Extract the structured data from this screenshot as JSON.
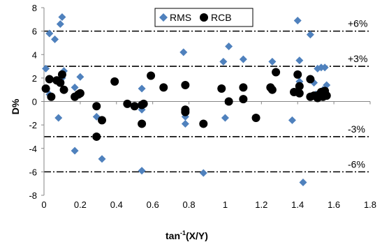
{
  "chart_data": {
    "type": "scatter",
    "xlabel_base": "tan",
    "xlabel_sup": "-1",
    "xlabel_rest": "(X/Y)",
    "ylabel": "D%",
    "xlim": [
      0,
      1.8
    ],
    "ylim": [
      -8,
      8
    ],
    "x_ticks": [
      "0",
      "0.2",
      "0.4",
      "0.6",
      "0.8",
      "1",
      "1.2",
      "1.4",
      "1.6",
      "1.8"
    ],
    "y_ticks": [
      "8",
      "6",
      "4",
      "2",
      "0",
      "-2",
      "-4",
      "-6",
      "-8"
    ],
    "grid": false,
    "legend_position": "top-center",
    "reference_lines": [
      {
        "y": 6,
        "label": "+6%"
      },
      {
        "y": 3,
        "label": "+3%"
      },
      {
        "y": -3,
        "label": "-3%"
      },
      {
        "y": -6,
        "label": "-6%"
      }
    ],
    "series": [
      {
        "name": "RMS",
        "marker": "diamond",
        "color": "#4F81BD",
        "points": [
          [
            0.01,
            2.8
          ],
          [
            0.03,
            5.8
          ],
          [
            0.06,
            5.3
          ],
          [
            0.09,
            6.6
          ],
          [
            0.1,
            7.2
          ],
          [
            0.03,
            0.6
          ],
          [
            0.08,
            -1.4
          ],
          [
            0.1,
            2.0
          ],
          [
            0.11,
            2.6
          ],
          [
            0.17,
            -4.2
          ],
          [
            0.17,
            1.2
          ],
          [
            0.2,
            2.1
          ],
          [
            0.29,
            -1.3
          ],
          [
            0.32,
            -4.9
          ],
          [
            0.54,
            1.1
          ],
          [
            0.54,
            -0.7
          ],
          [
            0.54,
            -5.9
          ],
          [
            0.77,
            4.2
          ],
          [
            0.78,
            -1.3
          ],
          [
            0.78,
            -1.9
          ],
          [
            0.88,
            -6.1
          ],
          [
            0.99,
            3.4
          ],
          [
            1.0,
            -1.4
          ],
          [
            1.02,
            4.7
          ],
          [
            1.1,
            3.6
          ],
          [
            1.26,
            3.4
          ],
          [
            1.37,
            -1.6
          ],
          [
            1.4,
            6.9
          ],
          [
            1.41,
            3.5
          ],
          [
            1.41,
            1.7
          ],
          [
            1.43,
            -6.9
          ],
          [
            1.47,
            5.7
          ],
          [
            1.49,
            1.6
          ],
          [
            1.51,
            2.8
          ],
          [
            1.53,
            2.9
          ],
          [
            1.55,
            2.9
          ],
          [
            1.56,
            1.4
          ],
          [
            1.5,
            0.6
          ],
          [
            1.54,
            1.0
          ]
        ]
      },
      {
        "name": "RCB",
        "marker": "circle",
        "color": "#000000",
        "points": [
          [
            0.01,
            1.1
          ],
          [
            0.03,
            1.9
          ],
          [
            0.04,
            0.4
          ],
          [
            0.07,
            1.8
          ],
          [
            0.09,
            1.6
          ],
          [
            0.1,
            2.3
          ],
          [
            0.11,
            1.0
          ],
          [
            0.17,
            0.4
          ],
          [
            0.19,
            0.6
          ],
          [
            0.2,
            0.7
          ],
          [
            0.29,
            -0.4
          ],
          [
            0.29,
            -3.0
          ],
          [
            0.32,
            -1.6
          ],
          [
            0.39,
            1.7
          ],
          [
            0.46,
            -0.2
          ],
          [
            0.5,
            -0.4
          ],
          [
            0.54,
            -0.3
          ],
          [
            0.54,
            -1.9
          ],
          [
            0.55,
            -0.2
          ],
          [
            0.59,
            2.2
          ],
          [
            0.66,
            1.2
          ],
          [
            0.78,
            1.4
          ],
          [
            0.78,
            -0.7
          ],
          [
            0.78,
            -0.9
          ],
          [
            0.88,
            -1.9
          ],
          [
            0.98,
            1.1
          ],
          [
            1.02,
            0.0
          ],
          [
            1.1,
            1.2
          ],
          [
            1.1,
            0.2
          ],
          [
            1.17,
            -1.4
          ],
          [
            1.25,
            1.2
          ],
          [
            1.26,
            1.0
          ],
          [
            1.28,
            2.5
          ],
          [
            1.38,
            0.8
          ],
          [
            1.4,
            2.3
          ],
          [
            1.41,
            1.3
          ],
          [
            1.41,
            0.7
          ],
          [
            1.47,
            0.4
          ],
          [
            1.47,
            1.9
          ],
          [
            1.49,
            0.5
          ],
          [
            1.51,
            0.3
          ],
          [
            1.52,
            0.6
          ],
          [
            1.53,
            0.8
          ],
          [
            1.54,
            0.4
          ],
          [
            1.55,
            0.9
          ],
          [
            1.56,
            0.5
          ]
        ]
      }
    ]
  }
}
